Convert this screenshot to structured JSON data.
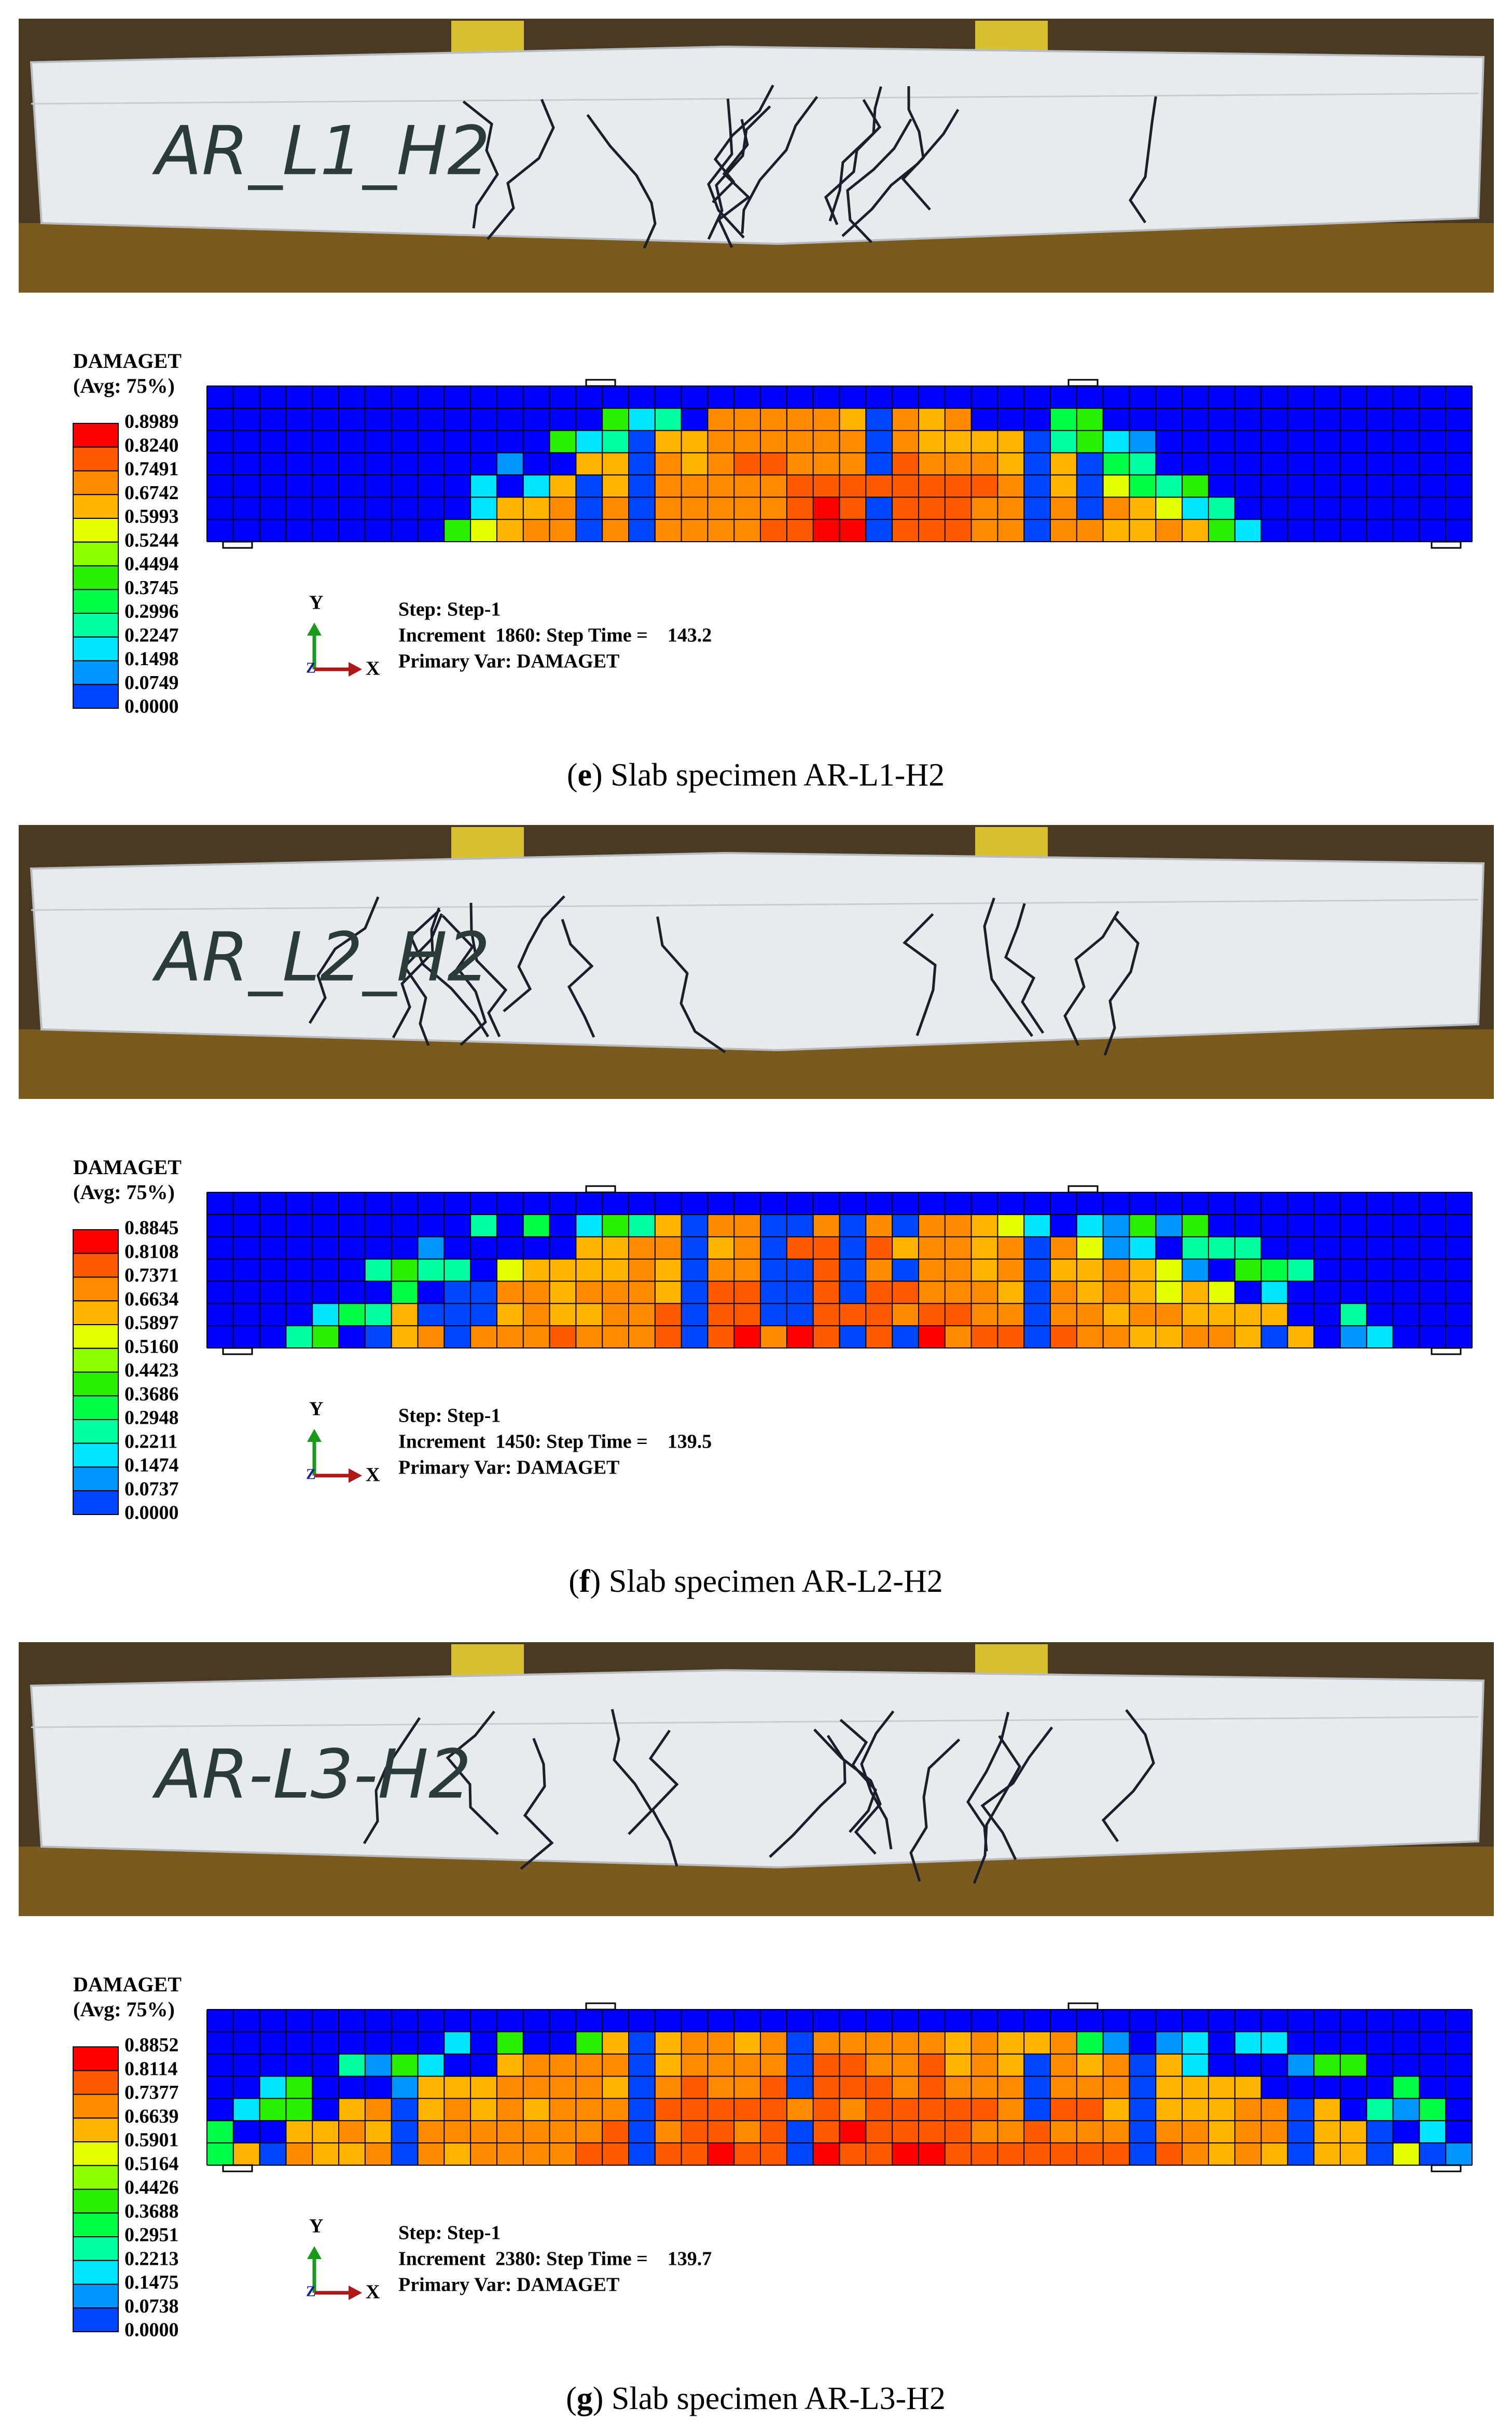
{
  "panels": [
    {
      "photo_label": "AR_L1_H2",
      "legend": {
        "title": "DAMAGET",
        "subtitle": "(Avg: 75%)",
        "values": [
          "0.8989",
          "0.8240",
          "0.7491",
          "0.6742",
          "0.5993",
          "0.5244",
          "0.4494",
          "0.3745",
          "0.2996",
          "0.2247",
          "0.1498",
          "0.0749",
          "0.0000"
        ]
      },
      "axes": {
        "y": "Y",
        "z": "Z",
        "x": "X"
      },
      "info": [
        "Step: Step-1",
        "Increment  1860: Step Time =    143.2",
        "Primary Var: DAMAGET"
      ],
      "caption": {
        "before": "(",
        "letter": "e",
        "after": ") Slab specimen AR-L1-H2"
      }
    },
    {
      "photo_label": "AR_L2_H2",
      "legend": {
        "title": "DAMAGET",
        "subtitle": "(Avg: 75%)",
        "values": [
          "0.8845",
          "0.8108",
          "0.7371",
          "0.6634",
          "0.5897",
          "0.5160",
          "0.4423",
          "0.3686",
          "0.2948",
          "0.2211",
          "0.1474",
          "0.0737",
          "0.0000"
        ]
      },
      "axes": {
        "y": "Y",
        "z": "Z",
        "x": "X"
      },
      "info": [
        "Step: Step-1",
        "Increment  1450: Step Time =    139.5",
        "Primary Var: DAMAGET"
      ],
      "caption": {
        "before": "(",
        "letter": "f",
        "after": ") Slab specimen AR-L2-H2"
      }
    },
    {
      "photo_label": "AR-L3-H2",
      "legend": {
        "title": "DAMAGET",
        "subtitle": "(Avg: 75%)",
        "values": [
          "0.8852",
          "0.8114",
          "0.7377",
          "0.6639",
          "0.5901",
          "0.5164",
          "0.4426",
          "0.3688",
          "0.2951",
          "0.2213",
          "0.1475",
          "0.0738",
          "0.0000"
        ]
      },
      "axes": {
        "y": "Y",
        "z": "Z",
        "x": "X"
      },
      "info": [
        "Step: Step-1",
        "Increment  2380: Step Time =    139.7",
        "Primary Var: DAMAGET"
      ],
      "caption": {
        "before": "(",
        "letter": "g",
        "after": ") Slab specimen AR-L3-H2"
      }
    }
  ]
}
